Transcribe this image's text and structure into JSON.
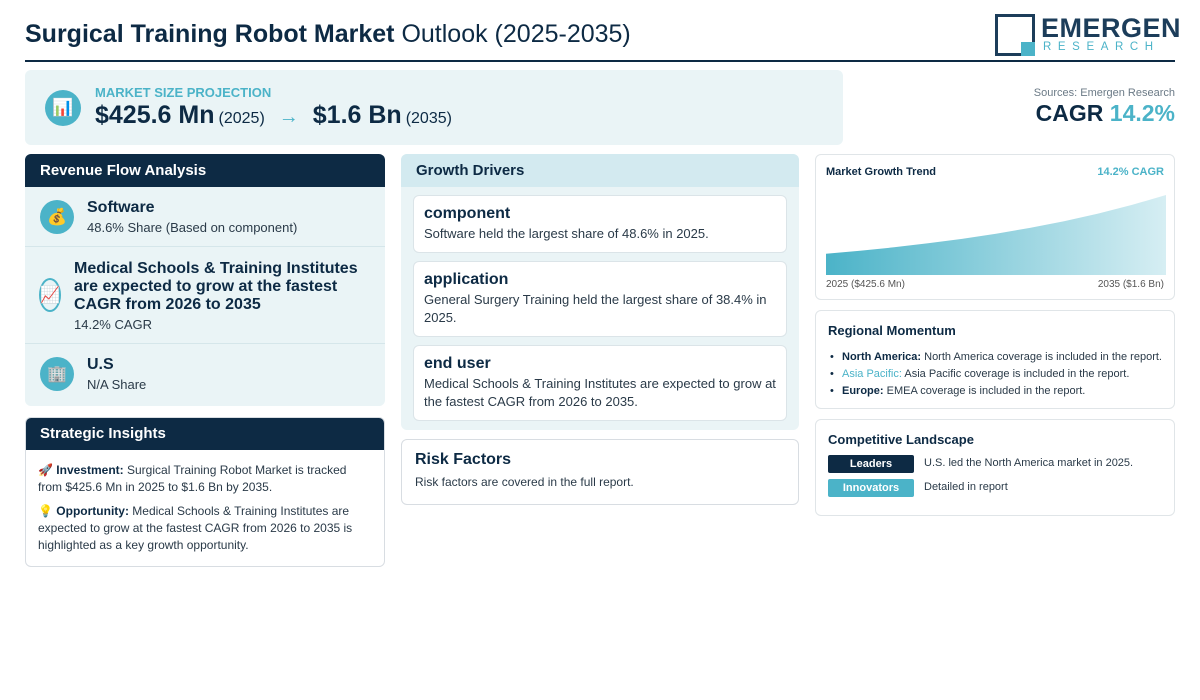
{
  "header": {
    "title_bold": "Surgical Training Robot Market",
    "title_light": "Outlook (2025-2035)",
    "logo_main": "EMERGEN",
    "logo_sub": "RESEARCH"
  },
  "projection": {
    "icon": "bar-chart-icon",
    "label": "MARKET SIZE PROJECTION",
    "start_value": "$425.6 Mn",
    "start_year": "(2025)",
    "arrow": "→",
    "end_value": "$1.6 Bn",
    "end_year": "(2035)"
  },
  "cagr_box": {
    "sources": "Sources: Emergen Research",
    "label": "CAGR",
    "value": "14.2%"
  },
  "revenue_flow": {
    "title": "Revenue Flow Analysis",
    "items": [
      {
        "icon": "money-bag-icon",
        "title": "Software",
        "sub": "48.6% Share (Based on component)"
      },
      {
        "icon": "trend-up-chart-icon",
        "title": "Medical Schools & Training Institutes are expected to grow at the fastest CAGR from 2026 to 2035",
        "sub": "14.2% CAGR"
      },
      {
        "icon": "building-icon",
        "title": "U.S",
        "sub": "N/A Share"
      }
    ]
  },
  "strategic_insights": {
    "title": "Strategic Insights",
    "items": [
      {
        "icon": "rocket-icon",
        "label": "Investment:",
        "text": "Surgical Training Robot Market is tracked from $425.6 Mn in 2025 to $1.6 Bn by 2035."
      },
      {
        "icon": "light-bulb-icon",
        "label": "Opportunity:",
        "text": "Medical Schools & Training Institutes are expected to grow at the fastest CAGR from 2026 to 2035 is highlighted as a key growth opportunity."
      }
    ]
  },
  "growth_drivers": {
    "title": "Growth Drivers",
    "items": [
      {
        "title": "component",
        "text": "Software held the largest share of 48.6% in 2025."
      },
      {
        "title": "application",
        "text": "General Surgery Training held the largest share of 38.4% in 2025."
      },
      {
        "title": "end user",
        "text": "Medical Schools & Training Institutes are expected to grow at the fastest CAGR from 2026 to 2035."
      }
    ]
  },
  "risk_factors": {
    "title": "Risk Factors",
    "text": "Risk factors are covered in the full report."
  },
  "market_trend": {
    "title": "Market Growth Trend",
    "cagr_label": "14.2% CAGR",
    "start_label": "2025 ($425.6 Mn)",
    "end_label": "2035 ($1.6 Bn)",
    "colors": {
      "fill_start": "#4bb3c8",
      "fill_end": "#d6eef3"
    }
  },
  "chart_data": {
    "type": "area",
    "x": [
      2025,
      2035
    ],
    "values": [
      425.6,
      1600
    ],
    "unit": "$ Mn",
    "title": "Market Growth Trend",
    "annotation": "14.2% CAGR"
  },
  "regional": {
    "title": "Regional Momentum",
    "items": [
      {
        "region": "North America:",
        "text": "North America coverage is included in the report."
      },
      {
        "region": "Asia Pacific:",
        "text": "Asia Pacific coverage is included in the report."
      },
      {
        "region": "Europe:",
        "text": "EMEA coverage is included in the report."
      }
    ]
  },
  "competitive": {
    "title": "Competitive Landscape",
    "rows": [
      {
        "badge": "Leaders",
        "color": "#0d2a44",
        "text": "U.S. led the North America market in 2025."
      },
      {
        "badge": "Innovators",
        "color": "#4bb3c8",
        "text": "Detailed in report"
      }
    ]
  },
  "theme": {
    "navy": "#0d2a44",
    "accent": "#4bb3c8",
    "panel_bg": "#eaf4f6"
  }
}
